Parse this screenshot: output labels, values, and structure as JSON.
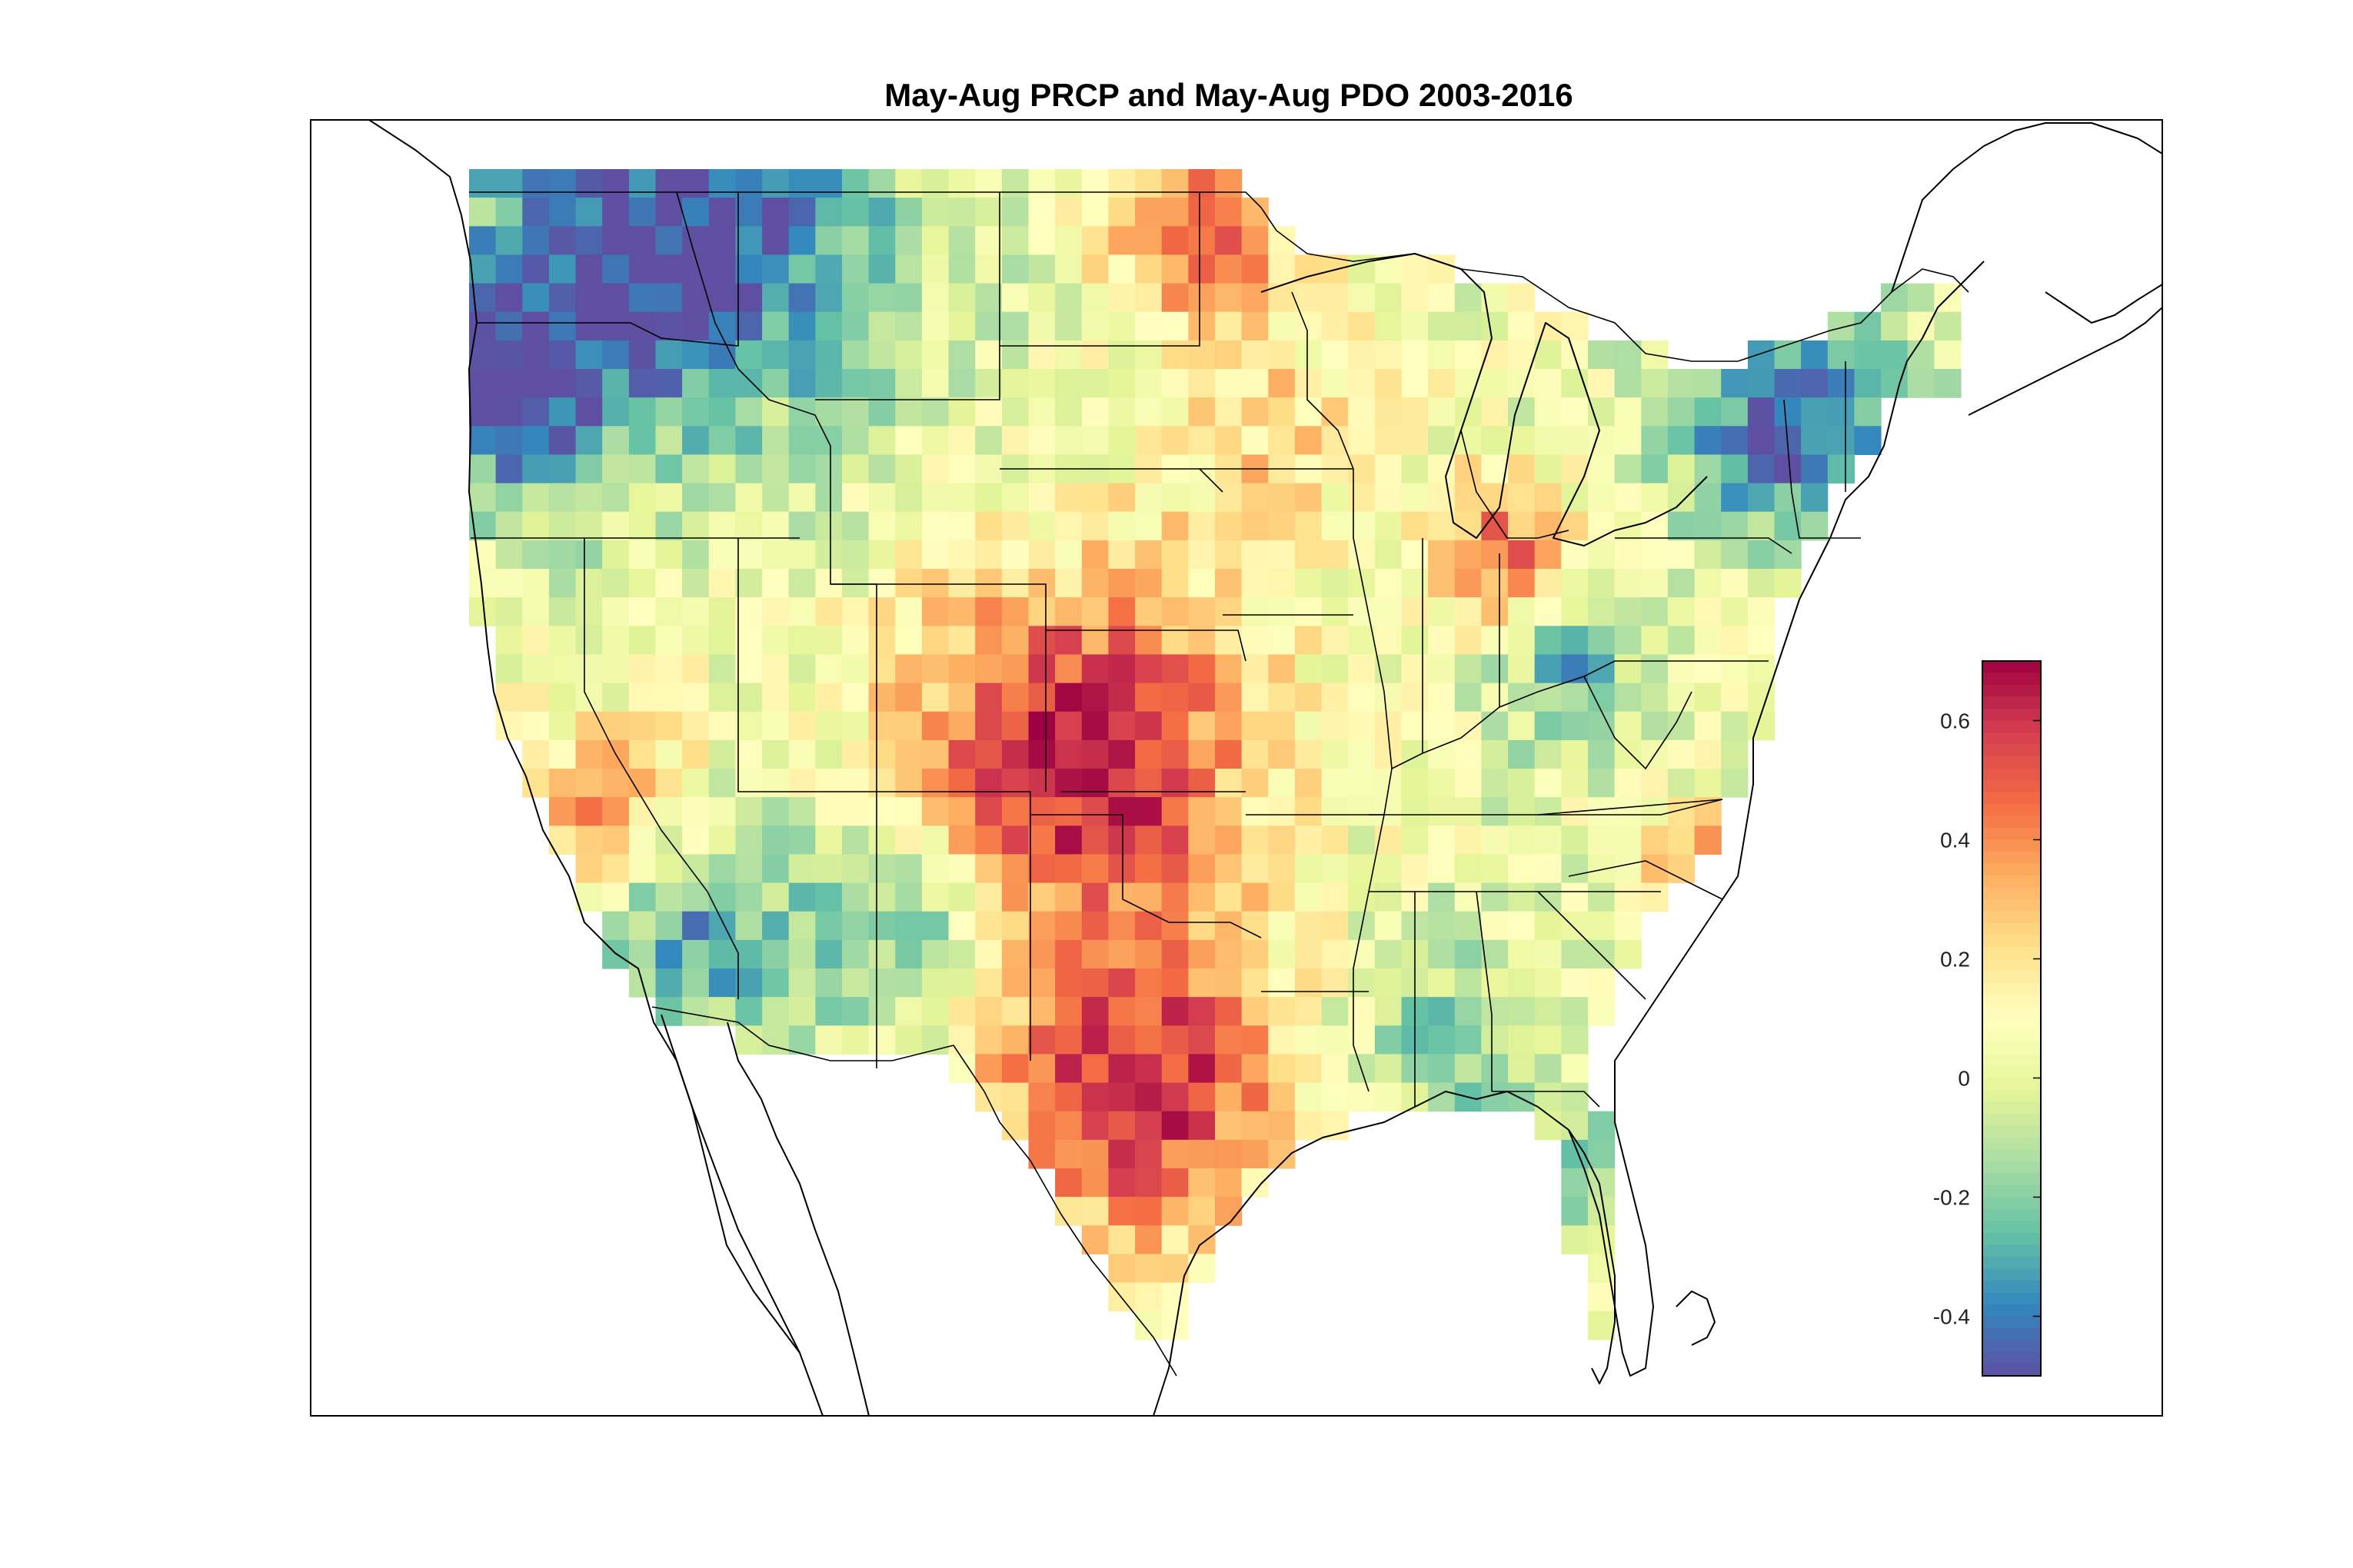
{
  "title": "May-Aug PRCP and May-Aug PDO 2003-2016",
  "map": {
    "region": "contiguous-us",
    "rows": 42,
    "cols": 56,
    "palette": [
      "#5e4fa2",
      "#3288bd",
      "#66c2a5",
      "#abdda4",
      "#e6f598",
      "#ffffbf",
      "#fee08b",
      "#fdae61",
      "#f46d43",
      "#d53e4f",
      "#9e0142"
    ],
    "vmin": -0.5,
    "vmax": 0.7
  },
  "colorbar": {
    "ticks": [
      "0.6",
      "0.4",
      "0.2",
      "0",
      "-0.2",
      "-0.4"
    ],
    "tick_values": [
      0.6,
      0.4,
      0.2,
      0,
      -0.2,
      -0.4
    ]
  }
}
